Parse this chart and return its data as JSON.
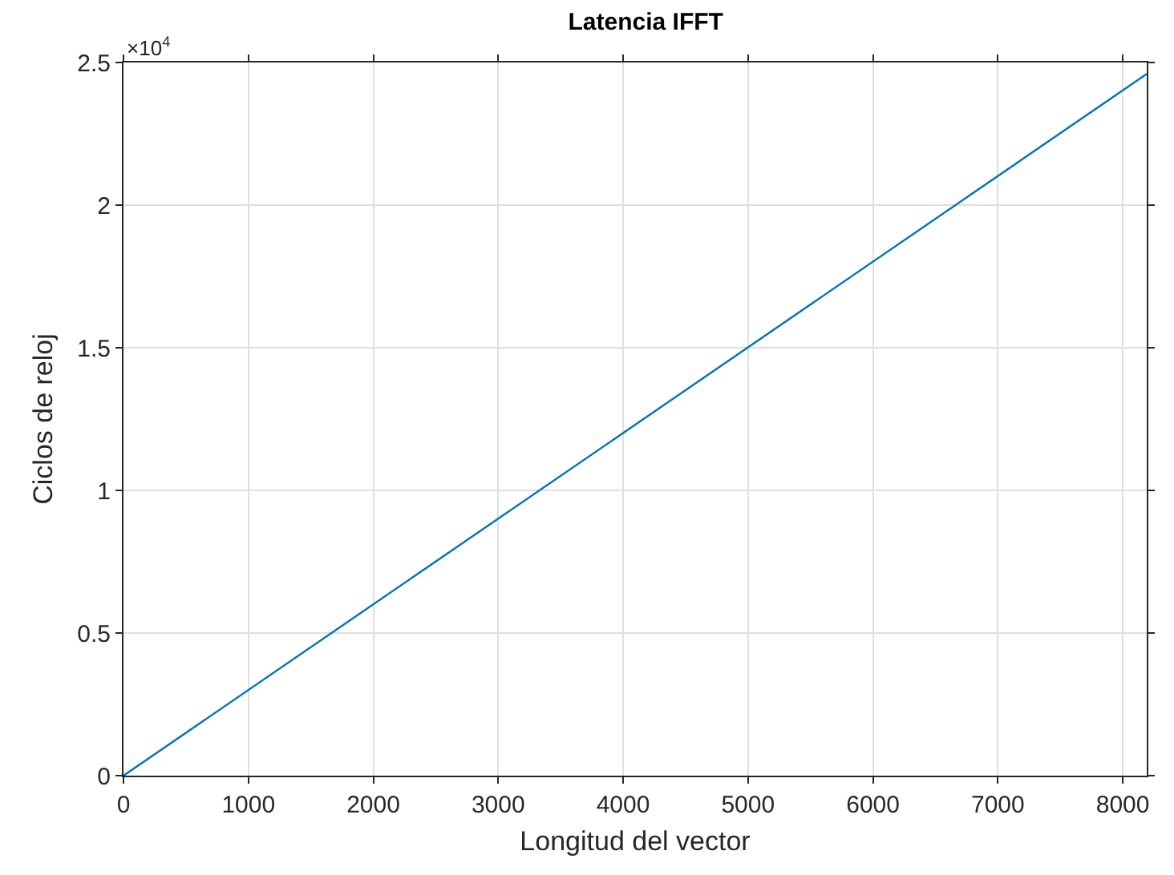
{
  "chart_data": {
    "type": "line",
    "title": "Latencia IFFT",
    "xlabel": "Longitud del vector",
    "ylabel": "Ciclos de reloj",
    "x": [
      0,
      8192
    ],
    "series": [
      {
        "color": "#0072bd",
        "values": [
          0,
          2.46
        ]
      }
    ],
    "xlim": [
      0,
      8192
    ],
    "xticks": [
      0,
      1000,
      2000,
      3000,
      4000,
      5000,
      6000,
      7000,
      8000
    ],
    "ylim": [
      0,
      2.5
    ],
    "yticks": [
      0,
      0.5,
      1,
      1.5,
      2,
      2.5
    ],
    "annotations": [
      "×10$^{4}$"
    ],
    "grid": true,
    "marker": "none",
    "line_style": "solid"
  }
}
